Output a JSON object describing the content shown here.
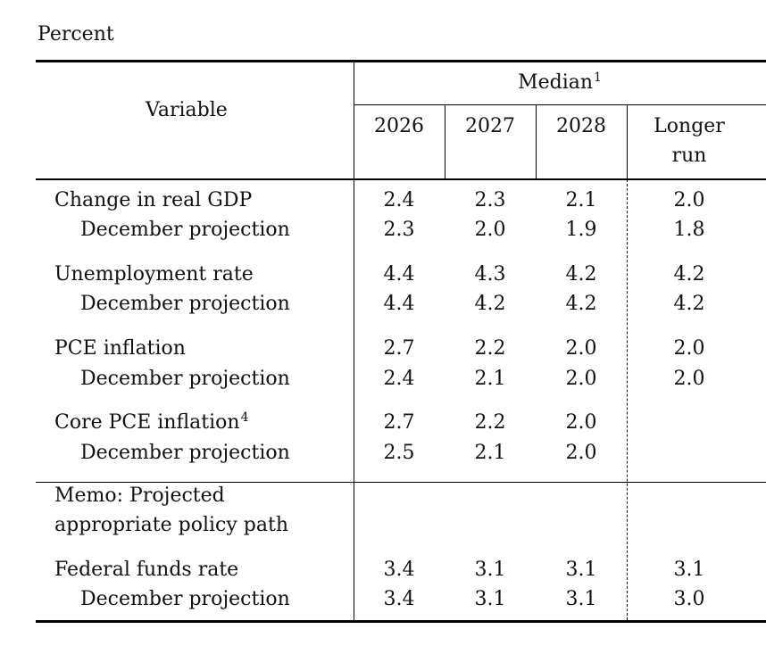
{
  "unit_label": "Percent",
  "header": {
    "variable": "Variable",
    "median": "Median",
    "median_note": "1",
    "years": [
      "2026",
      "2027",
      "2028"
    ],
    "longer_run_line1": "Longer",
    "longer_run_line2": "run"
  },
  "rows": [
    {
      "label": "Change in real GDP",
      "values": [
        "2.4",
        "2.3",
        "2.1",
        "2.0"
      ]
    },
    {
      "label": "December projection",
      "values": [
        "2.3",
        "2.0",
        "1.9",
        "1.8"
      ]
    },
    {
      "label": "Unemployment rate",
      "values": [
        "4.4",
        "4.3",
        "4.2",
        "4.2"
      ]
    },
    {
      "label": "December projection",
      "values": [
        "4.4",
        "4.2",
        "4.2",
        "4.2"
      ]
    },
    {
      "label": "PCE inflation",
      "values": [
        "2.7",
        "2.2",
        "2.0",
        "2.0"
      ]
    },
    {
      "label": "December projection",
      "values": [
        "2.4",
        "2.1",
        "2.0",
        "2.0"
      ]
    },
    {
      "label": "Core PCE inflation",
      "note": "4",
      "values": [
        "2.7",
        "2.2",
        "2.0",
        ""
      ]
    },
    {
      "label": "December projection",
      "values": [
        "2.5",
        "2.1",
        "2.0",
        ""
      ]
    }
  ],
  "memo": {
    "line1": "Memo: Projected",
    "line2": "appropriate policy path"
  },
  "memo_rows": [
    {
      "label": "Federal funds rate",
      "values": [
        "3.4",
        "3.1",
        "3.1",
        "3.1"
      ]
    },
    {
      "label": "December projection",
      "values": [
        "3.4",
        "3.1",
        "3.1",
        "3.0"
      ]
    }
  ]
}
